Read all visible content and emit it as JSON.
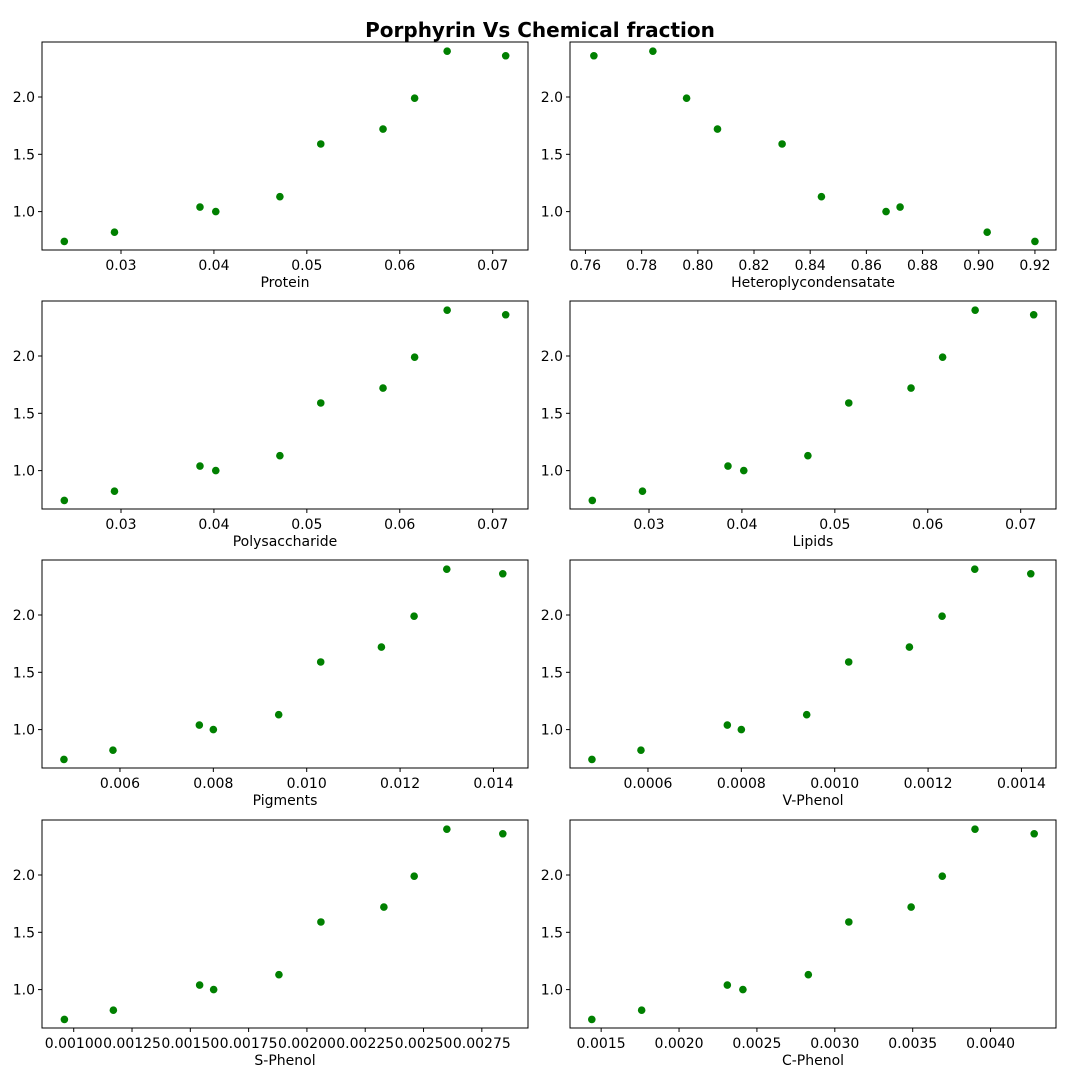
{
  "figure": {
    "title": "Porphyrin Vs Chemical fraction",
    "marker_color": "#008000"
  },
  "chart_data": [
    {
      "type": "scatter",
      "xlabel": "Protein",
      "ylabel": "",
      "xlim": [
        0.0215,
        0.0738
      ],
      "ylim": [
        0.665,
        2.48
      ],
      "xticks": [
        0.03,
        0.04,
        0.05,
        0.06,
        0.07
      ],
      "xtick_labels": [
        "0.03",
        "0.04",
        "0.05",
        "0.06",
        "0.07"
      ],
      "yticks": [
        1.0,
        1.5,
        2.0
      ],
      "ytick_labels": [
        "1.0",
        "1.5",
        "2.0"
      ],
      "grid": false,
      "x": [
        0.0239,
        0.0293,
        0.0385,
        0.0402,
        0.0471,
        0.0515,
        0.0582,
        0.0616,
        0.0651,
        0.0714
      ],
      "y": [
        0.74,
        0.82,
        1.04,
        1.0,
        1.13,
        1.59,
        1.72,
        1.99,
        2.4,
        2.36
      ]
    },
    {
      "type": "scatter",
      "xlabel": "Heteroplycondensatate",
      "ylabel": "",
      "xlim": [
        0.7545,
        0.9275
      ],
      "ylim": [
        0.665,
        2.48
      ],
      "xticks": [
        0.76,
        0.78,
        0.8,
        0.82,
        0.84,
        0.86,
        0.88,
        0.9,
        0.92
      ],
      "xtick_labels": [
        "0.76",
        "0.78",
        "0.80",
        "0.82",
        "0.84",
        "0.86",
        "0.88",
        "0.90",
        "0.92"
      ],
      "yticks": [
        1.0,
        1.5,
        2.0
      ],
      "ytick_labels": [
        "1.0",
        "1.5",
        "2.0"
      ],
      "grid": false,
      "x": [
        0.763,
        0.784,
        0.796,
        0.807,
        0.83,
        0.844,
        0.867,
        0.872,
        0.903,
        0.92
      ],
      "y": [
        2.36,
        2.4,
        1.99,
        1.72,
        1.59,
        1.13,
        1.0,
        1.04,
        0.82,
        0.74
      ]
    },
    {
      "type": "scatter",
      "xlabel": "Polysaccharide",
      "ylabel": "",
      "xlim": [
        0.0215,
        0.0738
      ],
      "ylim": [
        0.665,
        2.48
      ],
      "xticks": [
        0.03,
        0.04,
        0.05,
        0.06,
        0.07
      ],
      "xtick_labels": [
        "0.03",
        "0.04",
        "0.05",
        "0.06",
        "0.07"
      ],
      "yticks": [
        1.0,
        1.5,
        2.0
      ],
      "ytick_labels": [
        "1.0",
        "1.5",
        "2.0"
      ],
      "grid": false,
      "x": [
        0.0239,
        0.0293,
        0.0385,
        0.0402,
        0.0471,
        0.0515,
        0.0582,
        0.0616,
        0.0651,
        0.0714
      ],
      "y": [
        0.74,
        0.82,
        1.04,
        1.0,
        1.13,
        1.59,
        1.72,
        1.99,
        2.4,
        2.36
      ]
    },
    {
      "type": "scatter",
      "xlabel": "Lipids",
      "ylabel": "",
      "xlim": [
        0.0215,
        0.0738
      ],
      "ylim": [
        0.665,
        2.48
      ],
      "xticks": [
        0.03,
        0.04,
        0.05,
        0.06,
        0.07
      ],
      "xtick_labels": [
        "0.03",
        "0.04",
        "0.05",
        "0.06",
        "0.07"
      ],
      "yticks": [
        1.0,
        1.5,
        2.0
      ],
      "ytick_labels": [
        "1.0",
        "1.5",
        "2.0"
      ],
      "grid": false,
      "x": [
        0.0239,
        0.0293,
        0.0385,
        0.0402,
        0.0471,
        0.0515,
        0.0582,
        0.0616,
        0.0651,
        0.0714
      ],
      "y": [
        0.74,
        0.82,
        1.04,
        1.0,
        1.13,
        1.59,
        1.72,
        1.99,
        2.4,
        2.36
      ]
    },
    {
      "type": "scatter",
      "xlabel": "Pigments",
      "ylabel": "",
      "xlim": [
        0.00433,
        0.01474
      ],
      "ylim": [
        0.665,
        2.48
      ],
      "xticks": [
        0.006,
        0.008,
        0.01,
        0.012,
        0.014
      ],
      "xtick_labels": [
        "0.006",
        "0.008",
        "0.010",
        "0.012",
        "0.014"
      ],
      "yticks": [
        1.0,
        1.5,
        2.0
      ],
      "ytick_labels": [
        "1.0",
        "1.5",
        "2.0"
      ],
      "grid": false,
      "x": [
        0.0048,
        0.00585,
        0.0077,
        0.008,
        0.0094,
        0.0103,
        0.0116,
        0.0123,
        0.013,
        0.0142
      ],
      "y": [
        0.74,
        0.82,
        1.04,
        1.0,
        1.13,
        1.59,
        1.72,
        1.99,
        2.4,
        2.36
      ]
    },
    {
      "type": "scatter",
      "xlabel": "V-Phenol",
      "ylabel": "",
      "xlim": [
        0.000433,
        0.001474
      ],
      "ylim": [
        0.665,
        2.48
      ],
      "xticks": [
        0.0006,
        0.0008,
        0.001,
        0.0012,
        0.0014
      ],
      "xtick_labels": [
        "0.0006",
        "0.0008",
        "0.0010",
        "0.0012",
        "0.0014"
      ],
      "yticks": [
        1.0,
        1.5,
        2.0
      ],
      "ytick_labels": [
        "1.0",
        "1.5",
        "2.0"
      ],
      "grid": false,
      "x": [
        0.00048,
        0.000585,
        0.00077,
        0.0008,
        0.00094,
        0.00103,
        0.00116,
        0.00123,
        0.0013,
        0.00142
      ],
      "y": [
        0.74,
        0.82,
        1.04,
        1.0,
        1.13,
        1.59,
        1.72,
        1.99,
        2.4,
        2.36
      ]
    },
    {
      "type": "scatter",
      "xlabel": "S-Phenol",
      "ylabel": "",
      "xlim": [
        0.000864,
        0.002948
      ],
      "ylim": [
        0.665,
        2.48
      ],
      "xticks": [
        0.001,
        0.00125,
        0.0015,
        0.00175,
        0.002,
        0.00225,
        0.0025,
        0.00275
      ],
      "xtick_labels": [
        "0.00100",
        "0.00125",
        "0.00150",
        "0.00175",
        "0.00200",
        "0.00225",
        "0.00250",
        "0.00275"
      ],
      "yticks": [
        1.0,
        1.5,
        2.0
      ],
      "ytick_labels": [
        "1.0",
        "1.5",
        "2.0"
      ],
      "grid": false,
      "x": [
        0.00096,
        0.00117,
        0.00154,
        0.0016,
        0.00188,
        0.00206,
        0.00233,
        0.00246,
        0.0026,
        0.00284
      ],
      "y": [
        0.74,
        0.82,
        1.04,
        1.0,
        1.13,
        1.59,
        1.72,
        1.99,
        2.4,
        2.36
      ]
    },
    {
      "type": "scatter",
      "xlabel": "C-Phenol",
      "ylabel": "",
      "xlim": [
        0.0013,
        0.00442
      ],
      "ylim": [
        0.665,
        2.48
      ],
      "xticks": [
        0.0015,
        0.002,
        0.0025,
        0.003,
        0.0035,
        0.004
      ],
      "xtick_labels": [
        "0.0015",
        "0.0020",
        "0.0025",
        "0.0030",
        "0.0035",
        "0.0040"
      ],
      "yticks": [
        1.0,
        1.5,
        2.0
      ],
      "ytick_labels": [
        "1.0",
        "1.5",
        "2.0"
      ],
      "grid": false,
      "x": [
        0.00144,
        0.00176,
        0.00231,
        0.00241,
        0.00283,
        0.00309,
        0.00349,
        0.00369,
        0.0039,
        0.00428
      ],
      "y": [
        0.74,
        0.82,
        1.04,
        1.0,
        1.13,
        1.59,
        1.72,
        1.99,
        2.4,
        2.36
      ]
    }
  ]
}
